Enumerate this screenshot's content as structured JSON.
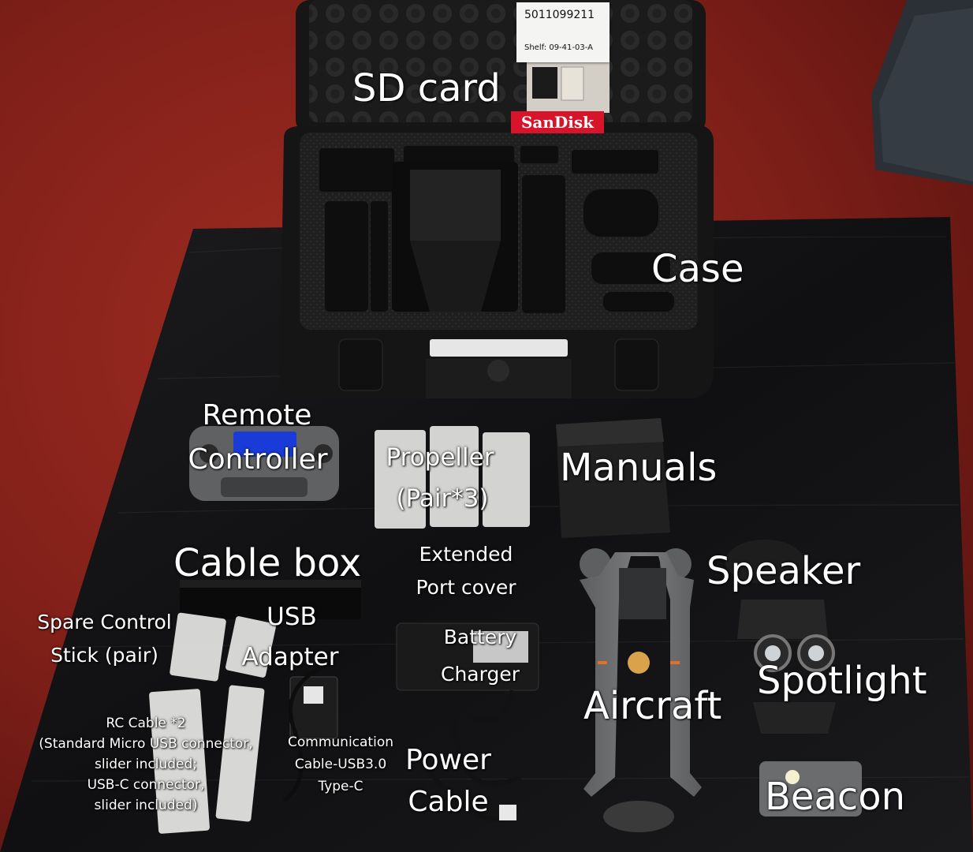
{
  "scene": {
    "description_items": [
      "case",
      "sd-card",
      "remote-controller",
      "propellers",
      "manuals",
      "cable-box",
      "port-cover",
      "battery-charger",
      "aircraft",
      "speaker",
      "spotlight",
      "beacon",
      "usb-adapter",
      "control-sticks",
      "rc-cables",
      "communication-cable",
      "power-cable"
    ]
  },
  "sticker": {
    "code": "5011099211",
    "shelf": "Shelf: 09-41-03-A"
  },
  "sandisk_label": "SanDisk",
  "labels": {
    "sd_card": "SD card",
    "case": "Case",
    "remote_controller_1": "Remote",
    "remote_controller_2": "Controller",
    "propeller_1": "Propeller",
    "propeller_2": "(Pair*3)",
    "manuals": "Manuals",
    "cable_box": "Cable box",
    "extended_1": "Extended",
    "extended_2": "Port cover",
    "speaker": "Speaker",
    "spare_1": "Spare Control",
    "spare_2": "Stick (pair)",
    "usb_1": "USB",
    "usb_2": "Adapter",
    "battery_1": "Battery",
    "battery_2": "Charger",
    "spotlight": "Spotlight",
    "aircraft": "Aircraft",
    "rc_1": "RC Cable *2",
    "rc_2": "(Standard Micro USB connector,",
    "rc_3": "slider included;",
    "rc_4": "USB-C connector,",
    "rc_5": "slider included)",
    "comm_1": "Communication",
    "comm_2": "Cable-USB3.0",
    "comm_3": "Type-C",
    "power_1": "Power",
    "power_2": "Cable",
    "beacon": "Beacon"
  },
  "colors": {
    "table_red": "#8a231c",
    "mat_black": "#141414",
    "case_black": "#1a1a1a",
    "drone_grey": "#6d6f70",
    "label_white": "#ffffff",
    "sandisk_red": "#d8142a"
  }
}
